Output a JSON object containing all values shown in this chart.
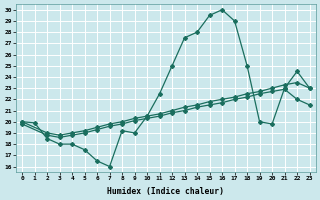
{
  "xlabel": "Humidex (Indice chaleur)",
  "bg_color": "#cce8ec",
  "grid_color": "#ffffff",
  "line_color": "#1a6e5e",
  "xlim": [
    -0.5,
    23.5
  ],
  "ylim": [
    15.5,
    30.5
  ],
  "xticks": [
    0,
    1,
    2,
    3,
    4,
    5,
    6,
    7,
    8,
    9,
    10,
    11,
    12,
    13,
    14,
    15,
    16,
    17,
    18,
    19,
    20,
    21,
    22,
    23
  ],
  "yticks": [
    16,
    17,
    18,
    19,
    20,
    21,
    22,
    23,
    24,
    25,
    26,
    27,
    28,
    29,
    30
  ],
  "line1_x": [
    0,
    1,
    2,
    3,
    4,
    5,
    6,
    7,
    8,
    9,
    10,
    11,
    12,
    13,
    14,
    15,
    16,
    17,
    18,
    19,
    20,
    21,
    22,
    23
  ],
  "line1_y": [
    20.0,
    19.9,
    18.5,
    18.0,
    18.0,
    17.5,
    16.5,
    16.0,
    19.2,
    19.0,
    20.5,
    22.5,
    25.0,
    27.5,
    28.0,
    29.5,
    30.0,
    29.0,
    25.0,
    20.0,
    19.8,
    23.0,
    24.5,
    23.0
  ],
  "line2_x": [
    0,
    2,
    3,
    4,
    5,
    6,
    7,
    8,
    9,
    10,
    11,
    12,
    13,
    14,
    15,
    16,
    17,
    18,
    19,
    20,
    21,
    22,
    23
  ],
  "line2_y": [
    20.0,
    19.0,
    18.8,
    19.0,
    19.2,
    19.5,
    19.8,
    20.0,
    20.3,
    20.5,
    20.7,
    21.0,
    21.3,
    21.5,
    21.8,
    22.0,
    22.2,
    22.5,
    22.7,
    23.0,
    23.3,
    23.5,
    23.0
  ],
  "line3_x": [
    0,
    2,
    3,
    4,
    5,
    6,
    7,
    8,
    9,
    10,
    11,
    12,
    13,
    14,
    15,
    16,
    17,
    18,
    19,
    20,
    21,
    22,
    23
  ],
  "line3_y": [
    19.8,
    18.8,
    18.6,
    18.8,
    19.0,
    19.3,
    19.6,
    19.8,
    20.1,
    20.3,
    20.5,
    20.8,
    21.0,
    21.3,
    21.5,
    21.7,
    22.0,
    22.2,
    22.5,
    22.7,
    22.9,
    22.0,
    21.5
  ]
}
